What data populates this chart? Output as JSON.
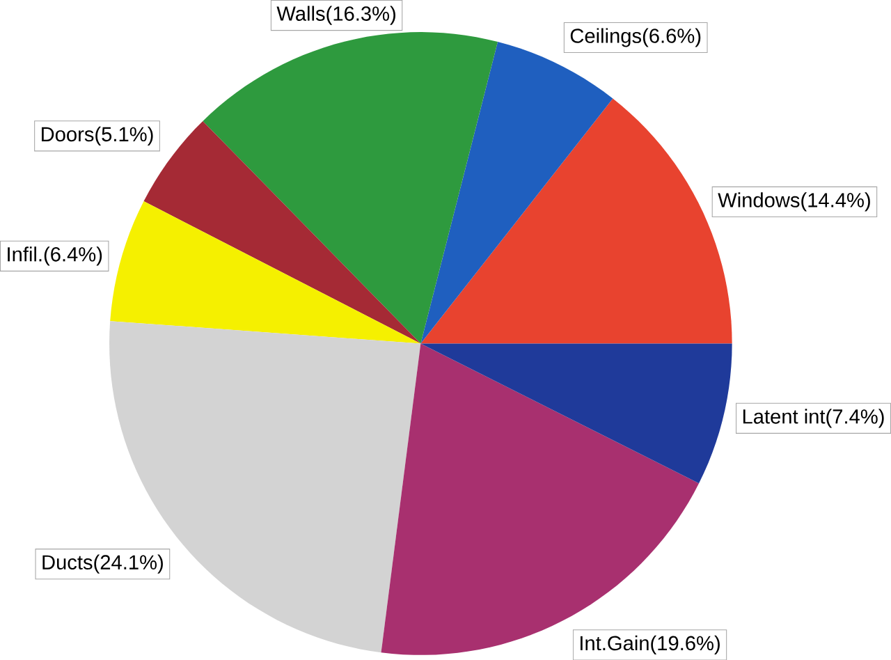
{
  "chart_data": {
    "type": "pie",
    "categories": [
      "Windows(14.4%)",
      "Ceilings(6.6%)",
      "Walls(16.3%)",
      "Doors(5.1%)",
      "Infil.(6.4%)",
      "Ducts(24.1%)",
      "Int.Gain(19.6%)",
      "Latent int(7.4%)"
    ],
    "values": [
      14.4,
      6.6,
      16.3,
      5.1,
      6.4,
      24.1,
      19.6,
      7.4
    ],
    "colors": [
      "#e8432f",
      "#1f5fbf",
      "#2e9a3e",
      "#a52a35",
      "#f5f000",
      "#d3d3d3",
      "#a8306f",
      "#1f3a9a"
    ]
  }
}
